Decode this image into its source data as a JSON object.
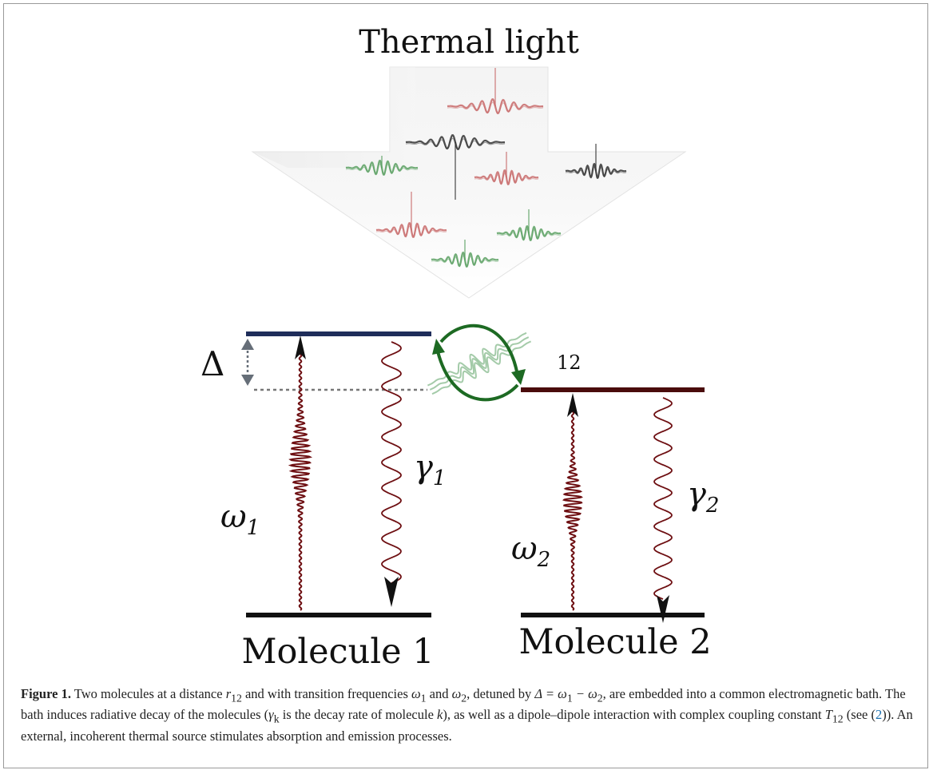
{
  "figure": {
    "title": "Thermal light",
    "delta_label": "Δ",
    "coupling_label": "12",
    "molecule1": {
      "label": "Molecule 1",
      "omega": "ω",
      "omega_sub": "1",
      "gamma": "γ",
      "gamma_sub": "1"
    },
    "molecule2": {
      "label": "Molecule 2",
      "omega": "ω",
      "omega_sub": "2",
      "gamma": "γ",
      "gamma_sub": "2"
    },
    "colors": {
      "level1": "#1f2d5a",
      "level2": "#4a0c0c",
      "ground": "#111111",
      "wave": "#6e0f12",
      "pulse_red": "#c86a6a",
      "pulse_green": "#5aa062",
      "pulse_black": "#333333",
      "coupling_arrow": "#1d6a23",
      "delta_arrow": "#666e78"
    }
  },
  "caption": {
    "label": "Figure 1.",
    "p1": " Two molecules at a distance ",
    "r": "r",
    "r_sub": "12",
    "p2": " and with transition frequencies ",
    "w1": "ω",
    "w1_sub": "1",
    "p3": " and ",
    "w2": "ω",
    "w2_sub": "2",
    "p4": ", detuned by ",
    "delta_eq": "Δ = ω",
    "delta_eq_sub1": "1",
    "delta_eq_mid": " − ω",
    "delta_eq_sub2": "2",
    "p5": ", are embedded into a common electromagnetic bath. The bath induces radiative decay of the molecules (",
    "gk": "γ",
    "gk_sub": "k",
    "p6": " is the decay rate of molecule ",
    "k": "k",
    "p7": "), as well as a dipole–dipole interaction with complex coupling constant ",
    "T": "T",
    "T_sub": "12",
    "p8": " (see (",
    "ref": "2",
    "p9": ")). An external, incoherent thermal source stimulates absorption and emission processes."
  }
}
